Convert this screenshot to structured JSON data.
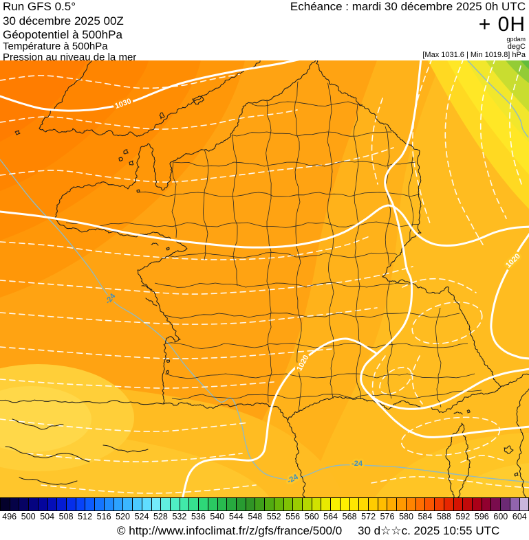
{
  "header": {
    "left_lines": [
      "Run GFS 0.5°",
      "30 décembre 2025 00Z",
      "Géopotentiel à 500hPa",
      "Température à 500hPa",
      "Pression au niveau de la mer"
    ],
    "echeance": "Echéance : mardi 30 décembre 2025 0h UTC",
    "step": "+ 0H",
    "unit_primary": "gpdam",
    "unit_secondary": "degC",
    "minmax": "[Max 1031.6 | Min 1019.8] hPa"
  },
  "map": {
    "isobar_labels": [
      "1030",
      "1020",
      "1020"
    ],
    "isotherm_labels": [
      "-24",
      "-24",
      "-24"
    ],
    "contour_color": "#ffffff",
    "isotherm_color": "#8fbac3"
  },
  "scale": {
    "unit": "gpdam",
    "values": [
      496,
      500,
      504,
      508,
      512,
      516,
      520,
      524,
      528,
      532,
      536,
      540,
      544,
      548,
      552,
      556,
      560,
      564,
      568,
      572,
      576,
      580,
      584,
      588,
      592,
      596,
      600,
      604
    ],
    "colors": [
      "#04012b",
      "#050247",
      "#060263",
      "#050380",
      "#04059d",
      "#040eb9",
      "#041cd4",
      "#052eea",
      "#0743f9",
      "#0c5bff",
      "#1474ff",
      "#1f8cff",
      "#2ca2ff",
      "#3bb7ff",
      "#4ccbff",
      "#60ddff",
      "#73ebfb",
      "#61efdf",
      "#4feec4",
      "#41e9a9",
      "#36e18f",
      "#2ed778",
      "#2ac962",
      "#28ba4f",
      "#27aa3f",
      "#289b31",
      "#309425",
      "#3fa01a",
      "#52ab11",
      "#68b709",
      "#80c204",
      "#9bcd01",
      "#b6d700",
      "#d1e100",
      "#e9ea00",
      "#f9f000",
      "#fff000",
      "#ffe600",
      "#ffda00",
      "#ffcc00",
      "#ffbd00",
      "#ffac00",
      "#ff9900",
      "#ff8400",
      "#ff6e00",
      "#fb5600",
      "#f33d00",
      "#e72600",
      "#d61302",
      "#c10a0a",
      "#ab0018",
      "#91002f",
      "#7a0c4d",
      "#6c2a74",
      "#9164ad",
      "#c9b6dc"
    ]
  },
  "footer": {
    "copyright": "© http://www.infoclimat.fr/z/gfs/france/500/0",
    "datetime": "30 d☆☆c. 2025 10:55 UTC"
  }
}
